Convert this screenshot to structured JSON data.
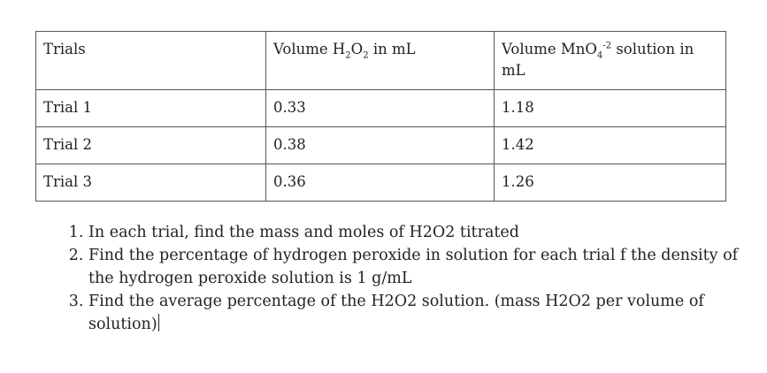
{
  "table": {
    "header": [
      [
        {
          "text": "Trials"
        }
      ],
      [
        {
          "text": "Volume H"
        },
        {
          "sub": "2"
        },
        {
          "text": "O"
        },
        {
          "sub": "2"
        },
        {
          "text": " in mL"
        }
      ],
      [
        {
          "text": "Volume MnO"
        },
        {
          "sub": "4"
        },
        {
          "sup": "-2"
        },
        {
          "text": " solution in mL"
        }
      ]
    ],
    "rows": [
      [
        "Trial 1",
        "0.33",
        "1.18"
      ],
      [
        "Trial 2",
        "0.38",
        "1.42"
      ],
      [
        "Trial 3",
        "0.36",
        "1.26"
      ]
    ]
  },
  "questions": [
    "In each trial, find the mass and moles of H2O2 titrated",
    "Find the percentage of hydrogen peroxide in solution for each trial f the density of the hydrogen peroxide solution is 1 g/mL",
    "Find the average percentage of the H2O2 solution. (mass H2O2 per volume of solution)"
  ]
}
